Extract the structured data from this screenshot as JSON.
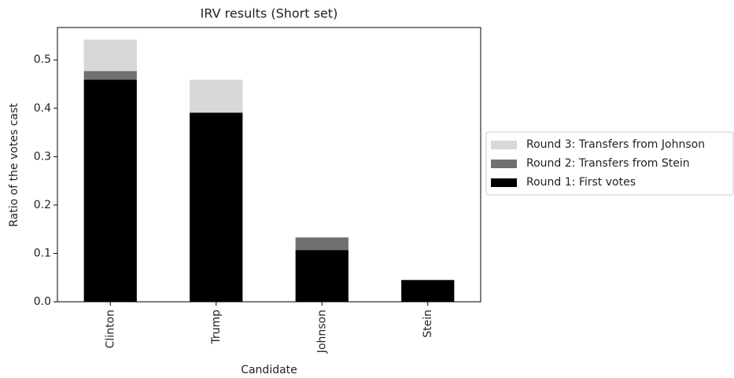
{
  "chart_data": {
    "type": "stacked_bar",
    "title": "IRV results (Short set)",
    "x_label": "Candidate",
    "y_label": "Ratio of the votes cast",
    "categories": [
      "Clinton",
      "Trump",
      "Johnson",
      "Stein"
    ],
    "series": [
      {
        "name": "Round 1: First votes",
        "color": "#000000",
        "values": [
          0.459,
          0.391,
          0.107,
          0.045
        ]
      },
      {
        "name": "Round 2: Transfers from Stein",
        "color": "#707070",
        "values": [
          0.018,
          0,
          0.026,
          0
        ]
      },
      {
        "name": "Round 3: Transfers from Johnson",
        "color": "#d8d8d8",
        "values": [
          0.065,
          0.068,
          0,
          0
        ]
      }
    ],
    "ylim": [
      0,
      0.567
    ],
    "yticks": [
      {
        "value": 0,
        "label": "0.0"
      },
      0.1,
      0.2,
      0.3,
      0.4,
      0.5
    ],
    "legend": "right"
  }
}
